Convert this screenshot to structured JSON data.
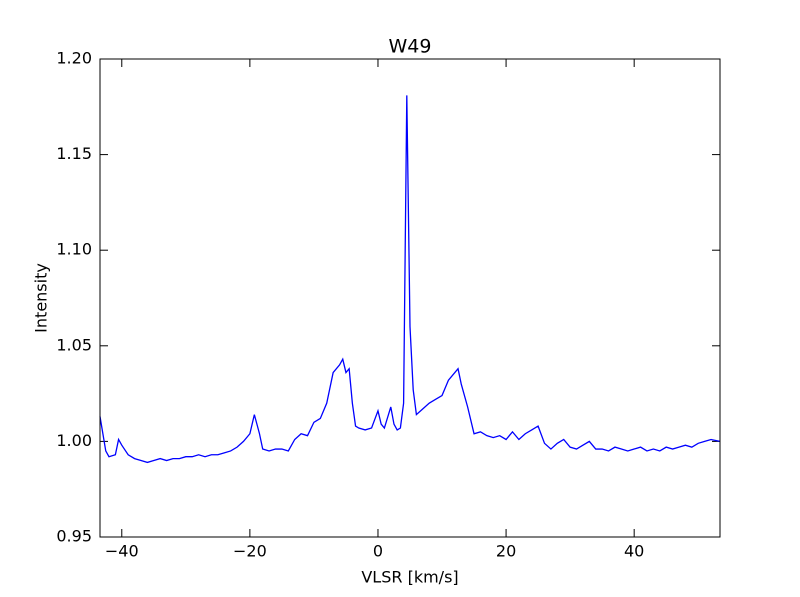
{
  "chart_data": {
    "type": "line",
    "title": "W49",
    "x_label": "VLSR [km/s]",
    "y_label": "Intensity",
    "color": "#0000ff",
    "xlim": [
      -43.4,
      53.4
    ],
    "ylim": [
      0.95,
      1.2
    ],
    "xticks": [
      {
        "value": -40,
        "label": "−40"
      },
      {
        "value": -20,
        "label": "−20"
      },
      0,
      20,
      40
    ],
    "yticks": [
      0.95,
      {
        "value": 1.0,
        "label": "1.00"
      },
      1.05,
      {
        "value": 1.1,
        "label": "1.10"
      },
      1.15,
      {
        "value": 1.2,
        "label": "1.20"
      }
    ],
    "x": [
      -43.4,
      -42.5,
      -42,
      -41,
      -40.5,
      -40,
      -39,
      -38,
      -37,
      -36,
      -35,
      -34,
      -33,
      -32,
      -31,
      -30,
      -29,
      -28,
      -27,
      -26,
      -25,
      -24,
      -23,
      -22,
      -21,
      -20,
      -19.3,
      -18.5,
      -18,
      -17,
      -16,
      -15,
      -14,
      -13,
      -12,
      -11,
      -10,
      -9,
      -8,
      -7,
      -6,
      -5.5,
      -5,
      -4.5,
      -4,
      -3.5,
      -3,
      -2,
      -1,
      0,
      0.5,
      1,
      2,
      2.5,
      3,
      3.5,
      4,
      4.5,
      5,
      5.5,
      6,
      7,
      8,
      9,
      10,
      11,
      12,
      12.5,
      13,
      14,
      15,
      16,
      17,
      18,
      19,
      20,
      21,
      22,
      23,
      24,
      25,
      26,
      27,
      28,
      29,
      30,
      31,
      32,
      33,
      34,
      35,
      36,
      37,
      38,
      39,
      40,
      41,
      42,
      43,
      44,
      45,
      46,
      47,
      48,
      49,
      50,
      51,
      52,
      53.4
    ],
    "values": [
      1.013,
      0.995,
      0.992,
      0.993,
      1.001,
      0.998,
      0.993,
      0.991,
      0.99,
      0.989,
      0.99,
      0.991,
      0.99,
      0.991,
      0.991,
      0.992,
      0.992,
      0.993,
      0.992,
      0.993,
      0.993,
      0.994,
      0.995,
      0.997,
      1.0,
      1.004,
      1.014,
      1.004,
      0.996,
      0.995,
      0.996,
      0.996,
      0.995,
      1.001,
      1.004,
      1.003,
      1.01,
      1.012,
      1.02,
      1.036,
      1.04,
      1.043,
      1.036,
      1.038,
      1.02,
      1.008,
      1.007,
      1.006,
      1.007,
      1.016,
      1.009,
      1.007,
      1.018,
      1.009,
      1.006,
      1.007,
      1.02,
      1.181,
      1.06,
      1.027,
      1.014,
      1.017,
      1.02,
      1.022,
      1.024,
      1.032,
      1.036,
      1.038,
      1.03,
      1.018,
      1.004,
      1.005,
      1.003,
      1.002,
      1.003,
      1.001,
      1.005,
      1.001,
      1.004,
      1.006,
      1.008,
      0.999,
      0.996,
      0.999,
      1.001,
      0.997,
      0.996,
      0.998,
      1.0,
      0.996,
      0.996,
      0.995,
      0.997,
      0.996,
      0.995,
      0.996,
      0.997,
      0.995,
      0.996,
      0.995,
      0.997,
      0.996,
      0.997,
      0.998,
      0.997,
      0.999,
      1.0,
      1.001,
      1.0
    ]
  }
}
